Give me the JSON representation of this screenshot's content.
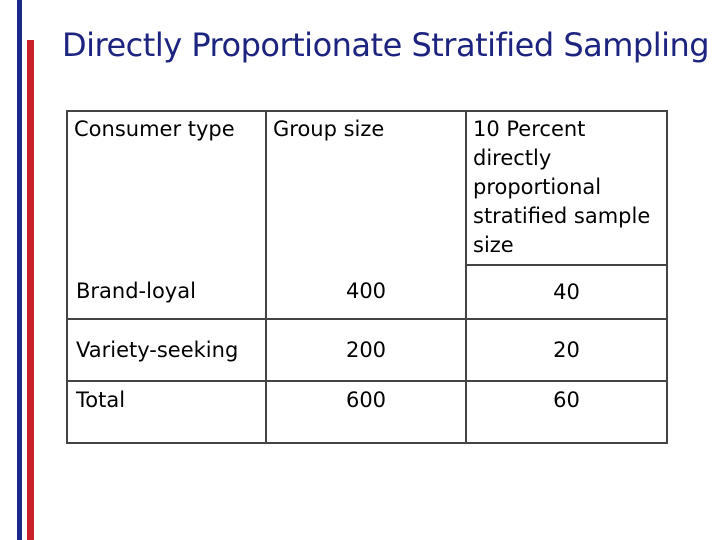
{
  "slide": {
    "title": "Directly Proportionate Stratified Sampling"
  },
  "table": {
    "headers": [
      "Consumer type",
      "Group size",
      "10 Percent directly proportional stratified sample size"
    ],
    "rows": [
      {
        "consumer_type": "Brand-loyal",
        "group_size": "400",
        "sample_size": "40"
      },
      {
        "consumer_type": "Variety-seeking",
        "group_size": "200",
        "sample_size": "20"
      },
      {
        "consumer_type": "Total",
        "group_size": "600",
        "sample_size": "60"
      }
    ]
  },
  "colors": {
    "title": "#1c2480",
    "bar_blue": "#1a2a8a",
    "bar_red": "#c8202a"
  }
}
